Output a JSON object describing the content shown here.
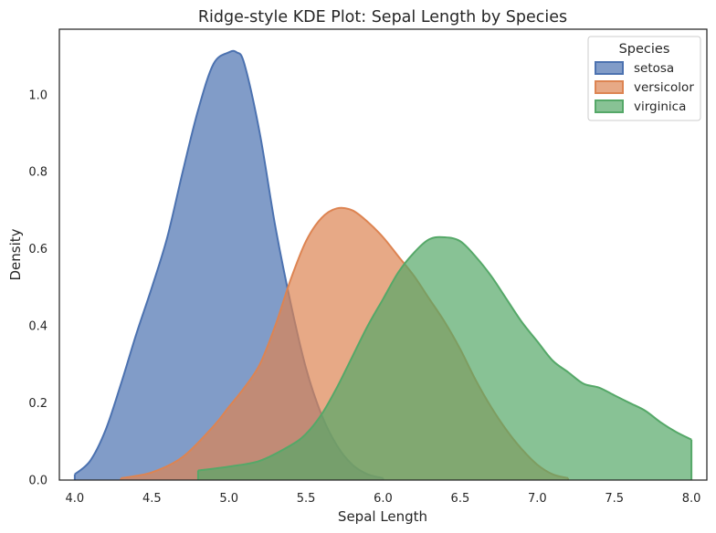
{
  "chart_data": {
    "type": "area",
    "title": "Ridge-style KDE Plot: Sepal Length by Species",
    "xlabel": "Sepal Length",
    "ylabel": "Density",
    "xlim": [
      3.9,
      8.1
    ],
    "ylim": [
      0,
      1.17
    ],
    "xticks": [
      "4.0",
      "4.5",
      "5.0",
      "5.5",
      "6.0",
      "6.5",
      "7.0",
      "7.5",
      "8.0"
    ],
    "yticks": [
      "0.0",
      "0.2",
      "0.4",
      "0.6",
      "0.8",
      "1.0"
    ],
    "grid": false,
    "legend": {
      "title": "Species",
      "position": "top-right"
    },
    "series": [
      {
        "name": "setosa",
        "color": "#4c72b0",
        "x": [
          4.0,
          4.1,
          4.2,
          4.3,
          4.4,
          4.5,
          4.6,
          4.7,
          4.8,
          4.9,
          5.0,
          5.05,
          5.1,
          5.2,
          5.3,
          5.4,
          5.5,
          5.6,
          5.7,
          5.8,
          5.9,
          6.0
        ],
        "y": [
          0.015,
          0.05,
          0.13,
          0.25,
          0.38,
          0.5,
          0.63,
          0.8,
          0.96,
          1.08,
          1.11,
          1.11,
          1.08,
          0.9,
          0.66,
          0.46,
          0.29,
          0.17,
          0.09,
          0.04,
          0.015,
          0.005
        ]
      },
      {
        "name": "versicolor",
        "color": "#dd8452",
        "x": [
          4.3,
          4.5,
          4.7,
          4.9,
          5.0,
          5.1,
          5.2,
          5.3,
          5.4,
          5.5,
          5.6,
          5.7,
          5.8,
          5.9,
          6.0,
          6.1,
          6.2,
          6.3,
          6.4,
          6.5,
          6.6,
          6.7,
          6.8,
          6.9,
          7.0,
          7.1,
          7.2
        ],
        "y": [
          0.005,
          0.02,
          0.06,
          0.14,
          0.19,
          0.24,
          0.3,
          0.4,
          0.52,
          0.62,
          0.68,
          0.705,
          0.7,
          0.67,
          0.63,
          0.58,
          0.53,
          0.47,
          0.41,
          0.34,
          0.26,
          0.19,
          0.13,
          0.08,
          0.04,
          0.015,
          0.005
        ]
      },
      {
        "name": "virginica",
        "color": "#55a868",
        "x": [
          4.8,
          5.0,
          5.2,
          5.4,
          5.5,
          5.6,
          5.7,
          5.8,
          5.9,
          6.0,
          6.1,
          6.2,
          6.3,
          6.4,
          6.5,
          6.6,
          6.7,
          6.8,
          6.9,
          7.0,
          7.1,
          7.2,
          7.3,
          7.4,
          7.5,
          7.6,
          7.7,
          7.8,
          7.9,
          8.0
        ],
        "y": [
          0.025,
          0.035,
          0.05,
          0.09,
          0.12,
          0.17,
          0.24,
          0.32,
          0.4,
          0.47,
          0.54,
          0.59,
          0.625,
          0.63,
          0.62,
          0.58,
          0.53,
          0.47,
          0.41,
          0.36,
          0.31,
          0.28,
          0.25,
          0.24,
          0.22,
          0.2,
          0.18,
          0.15,
          0.125,
          0.105
        ]
      }
    ]
  }
}
